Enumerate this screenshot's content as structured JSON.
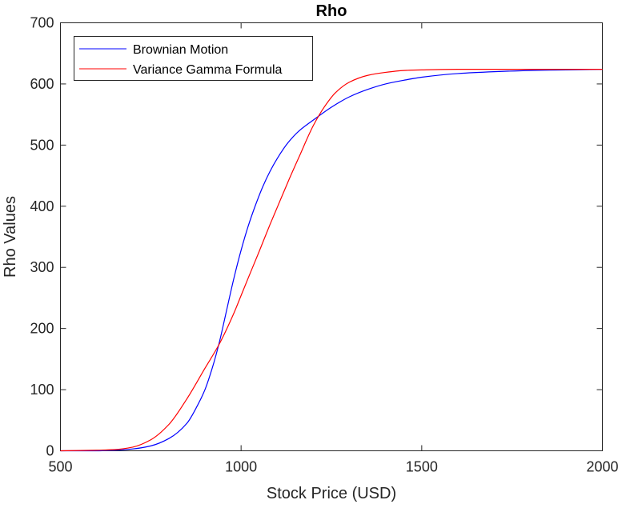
{
  "chart_data": {
    "type": "line",
    "title": "Rho",
    "xlabel": "Stock Price (USD)",
    "ylabel": "Rho Values",
    "xlim": [
      500,
      2000
    ],
    "ylim": [
      0,
      700
    ],
    "xticks": [
      "500",
      "1000",
      "1500",
      "2000"
    ],
    "yticks": [
      "0",
      "100",
      "200",
      "300",
      "400",
      "500",
      "600",
      "700"
    ],
    "grid": false,
    "legend_position": "top-left",
    "series": [
      {
        "name": "Brownian Motion",
        "color": "#0000ff",
        "x": [
          500,
          600,
          650,
          700,
          750,
          800,
          850,
          880,
          900,
          920,
          940,
          960,
          980,
          1000,
          1020,
          1040,
          1060,
          1080,
          1100,
          1130,
          1160,
          1200,
          1250,
          1300,
          1350,
          1400,
          1450,
          1500,
          1600,
          1700,
          1800,
          1900,
          2000
        ],
        "y": [
          0,
          0,
          1,
          3,
          8,
          20,
          45,
          75,
          100,
          135,
          178,
          230,
          282,
          328,
          368,
          402,
          432,
          457,
          478,
          504,
          523,
          541,
          562,
          579,
          591,
          600,
          606,
          611,
          617,
          620,
          622,
          623,
          624
        ]
      },
      {
        "name": "Variance Gamma Formula",
        "color": "#ff0000",
        "x": [
          500,
          600,
          650,
          700,
          750,
          800,
          850,
          900,
          940,
          980,
          1000,
          1020,
          1050,
          1080,
          1100,
          1130,
          1160,
          1200,
          1230,
          1260,
          1300,
          1350,
          1400,
          1450,
          1500,
          1600,
          1700,
          1800,
          1900,
          2000
        ],
        "y": [
          0,
          1,
          2,
          6,
          18,
          43,
          85,
          135,
          175,
          225,
          254,
          283,
          326,
          370,
          398,
          440,
          480,
          532,
          562,
          585,
          603,
          614,
          619,
          622,
          623,
          624,
          624,
          624,
          624,
          624
        ]
      }
    ]
  }
}
